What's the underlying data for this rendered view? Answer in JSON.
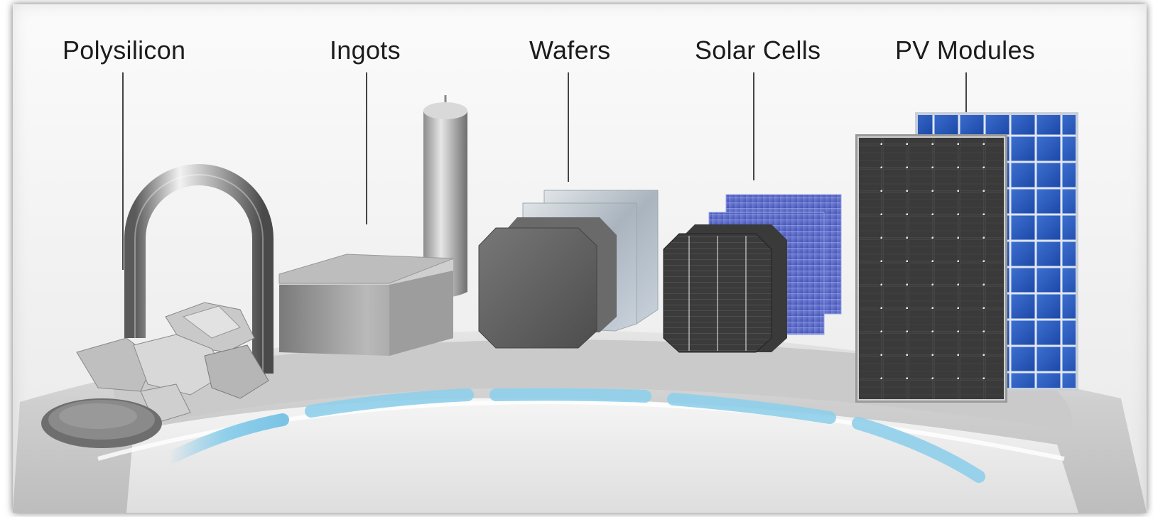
{
  "stages": [
    {
      "label": "Polysilicon",
      "icon": "polysilicon-chunks"
    },
    {
      "label": "Ingots",
      "icon": "silicon-ingot"
    },
    {
      "label": "Wafers",
      "icon": "silicon-wafers"
    },
    {
      "label": "Solar Cells",
      "icon": "solar-cells"
    },
    {
      "label": "PV Modules",
      "icon": "pv-modules"
    }
  ],
  "colors": {
    "label": "#1c1c1c",
    "platform": "#d6d6d6",
    "glow": "#7cc4e6",
    "mono_module": "#2f2f2f",
    "poly_module": "#2a58b8"
  }
}
